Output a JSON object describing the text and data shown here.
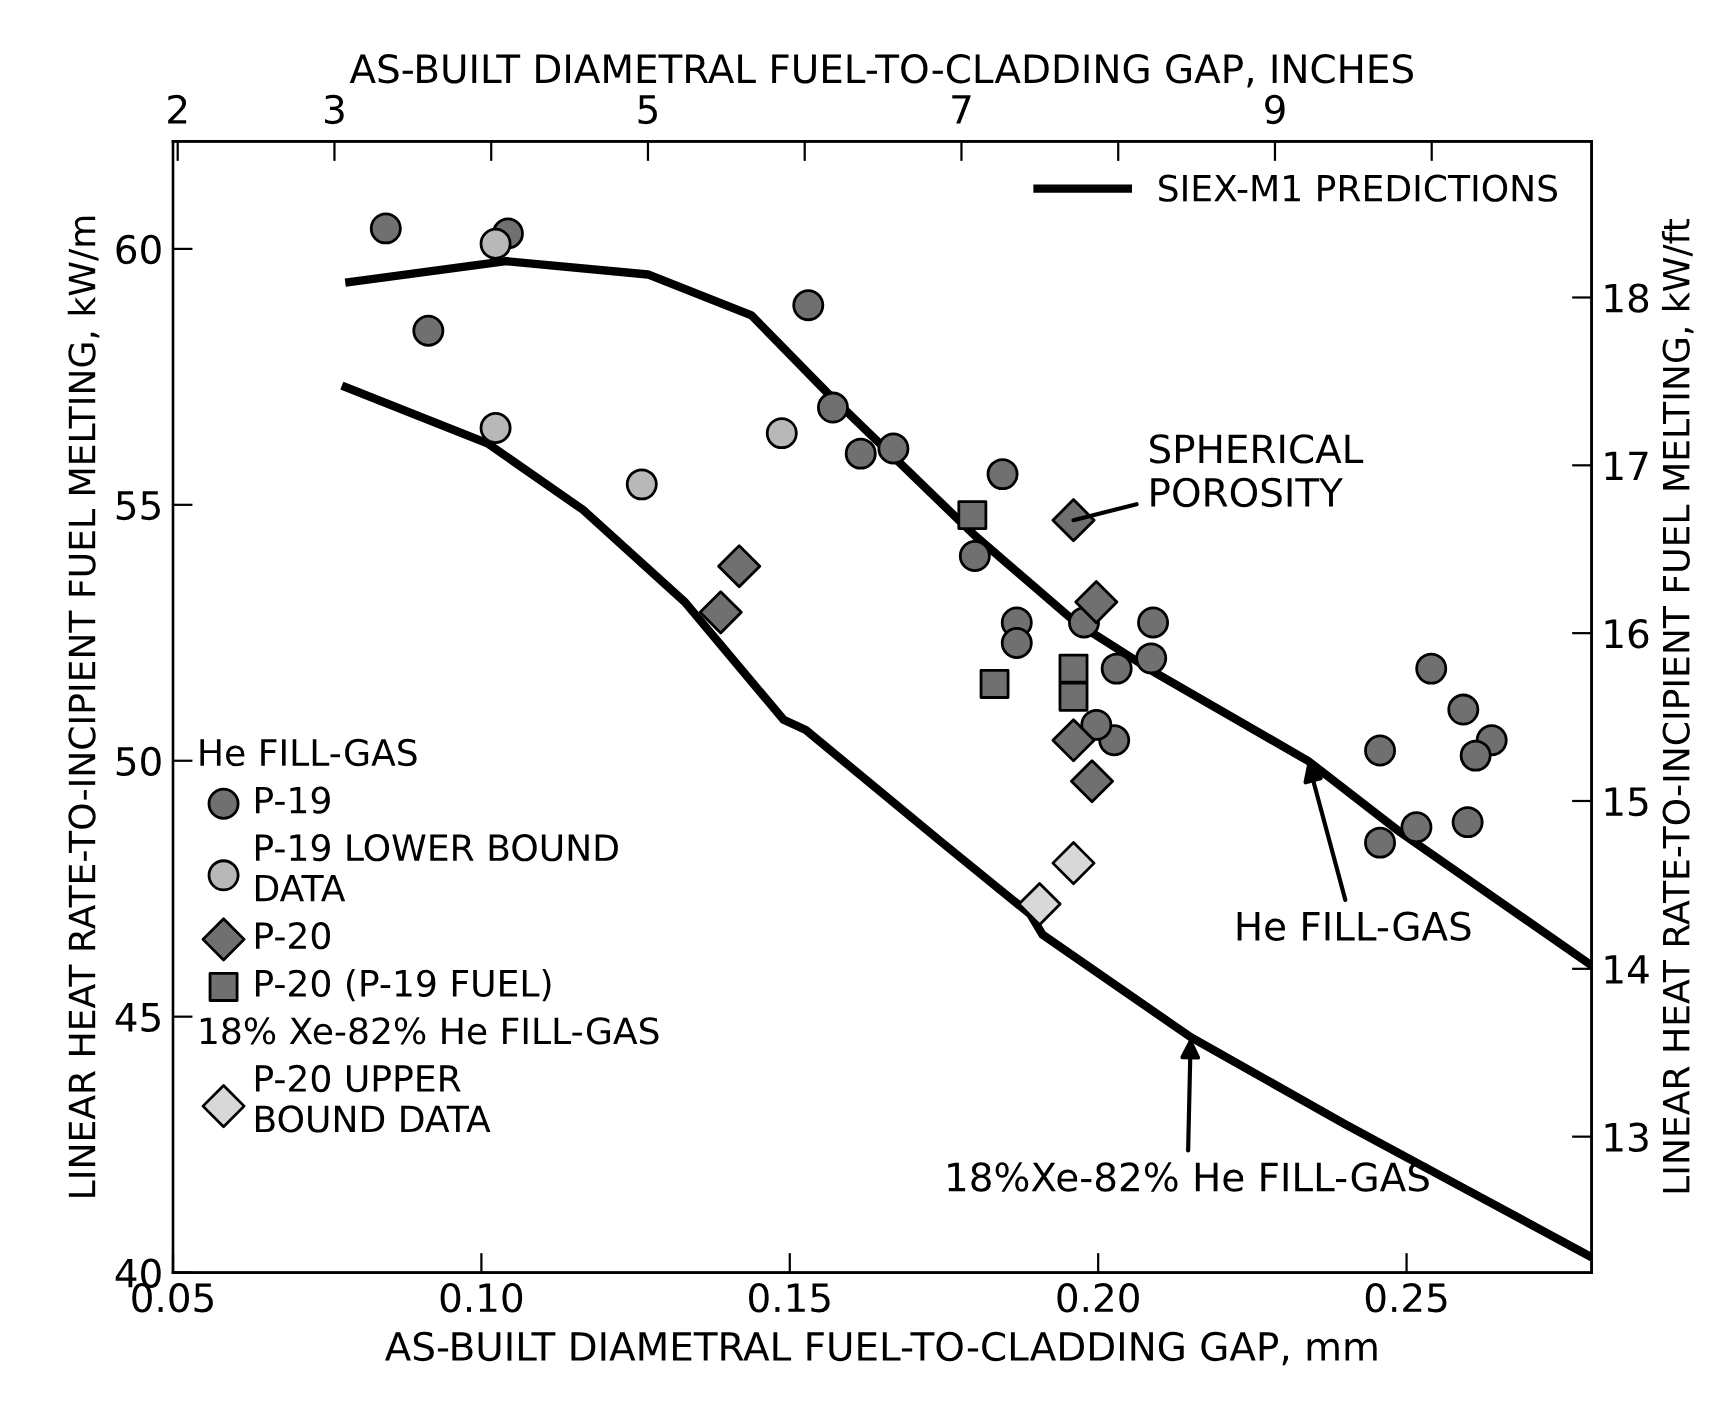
{
  "chart_data": {
    "type": "scatter",
    "xlabel": "AS-BUILT DIAMETRAL FUEL-TO-CLADDING GAP, mm",
    "x2label": "AS-BUILT DIAMETRAL FUEL-TO-CLADDING GAP, INCHES",
    "ylabel": "LINEAR HEAT RATE-TO-INCIPIENT FUEL MELTING, kW/m",
    "y2label": "LINEAR HEAT RATE-TO-INCIPIENT FUEL MELTING, kW/ft",
    "xlim": [
      0.05,
      0.28
    ],
    "xticks": [
      {
        "value": 0.05,
        "label": "0.05"
      },
      {
        "value": 0.1,
        "label": "0.10"
      },
      {
        "value": 0.15,
        "label": "0.15"
      },
      {
        "value": 0.2,
        "label": "0.20"
      },
      {
        "value": 0.25,
        "label": "0.25"
      }
    ],
    "x2lim": [
      1.97,
      11.02
    ],
    "x2ticks": [
      2,
      3,
      {
        "value": 4,
        "label": null
      },
      5,
      {
        "value": 6,
        "label": null
      },
      7,
      {
        "value": 8,
        "label": null
      },
      9,
      {
        "value": 10,
        "label": null
      }
    ],
    "ylim": [
      40,
      62.1
    ],
    "yticks": [
      40,
      45,
      50,
      55,
      60
    ],
    "y2lim": [
      12.19,
      18.93
    ],
    "y2ticks": [
      13,
      14,
      15,
      16,
      17,
      18
    ],
    "grid": false,
    "legend": "center left",
    "annotations": [
      "He FILL-GAS",
      "18% Xe-82% He FILL-GAS",
      {
        "text": "SPHERICAL\nPOROSITY",
        "x": 0.196,
        "y": 54.7
      },
      {
        "text": "He FILL-GAS",
        "x": 0.234,
        "y": 50.0
      },
      {
        "text": "18%Xe-82% He FILL-GAS",
        "x": 0.215,
        "y": 44.6
      }
    ],
    "series": [
      {
        "name": "P-19",
        "marker": "circle",
        "color": "#707070",
        "x": [
          0.0845,
          0.1043,
          0.0914,
          0.153,
          0.157,
          0.1615,
          0.1668,
          0.1845,
          0.18,
          0.1977,
          0.1868,
          0.1868,
          0.203,
          0.2086,
          0.2089,
          0.2026,
          0.1997,
          0.254,
          0.2592,
          0.2638,
          0.2612,
          0.2457,
          0.2599,
          0.2516,
          0.2457
        ],
        "values": [
          60.4,
          60.3,
          58.4,
          58.9,
          56.9,
          56.0,
          56.1,
          55.6,
          54.0,
          52.7,
          52.7,
          52.3,
          51.8,
          52.0,
          52.7,
          50.4,
          50.7,
          51.8,
          51.0,
          50.4,
          50.1,
          50.2,
          48.8,
          48.7,
          48.4
        ]
      },
      {
        "name": "P-19 LOWER BOUND\nDATA",
        "marker": "circle",
        "color": "#b8b8b8",
        "x": [
          0.1023,
          0.1023,
          0.126,
          0.1487
        ],
        "values": [
          60.1,
          56.5,
          55.4,
          56.4
        ]
      },
      {
        "name": "P-20",
        "marker": "diamond",
        "color": "#707070",
        "x": [
          0.1418,
          0.1388,
          0.196,
          0.1997,
          0.196,
          0.199
        ],
        "values": [
          53.8,
          52.9,
          54.7,
          53.1,
          50.4,
          49.6
        ]
      },
      {
        "name": "P-20 (P-19 FUEL)",
        "marker": "square",
        "color": "#707070",
        "x": [
          0.1796,
          0.1832,
          0.196,
          0.196
        ],
        "values": [
          54.8,
          51.5,
          51.8,
          51.25
        ]
      },
      {
        "name": "P-20 UPPER\nBOUND DATA",
        "marker": "diamond",
        "color": "#d8d8d8",
        "x": [
          0.196,
          0.1905
        ],
        "values": [
          48.0,
          47.2
        ]
      },
      {
        "name": "SIEX-M1 PREDICTIONS",
        "type": "line",
        "marker": "none",
        "color": "#000000",
        "x": [
          0.0786,
          0.104,
          0.127,
          0.1438,
          0.156,
          0.18,
          0.1964,
          0.2095,
          0.234,
          0.249,
          0.28
        ],
        "values": [
          59.35,
          59.76,
          59.5,
          58.7,
          57.2,
          54.4,
          52.7,
          51.7,
          50.0,
          48.6,
          46.0
        ]
      },
      {
        "type": "line",
        "marker": "none",
        "color": "#000000",
        "x": [
          0.078,
          0.101,
          0.1165,
          0.133,
          0.149,
          0.1526,
          0.1747,
          0.189,
          0.191,
          0.215,
          0.24,
          0.26,
          0.28
        ],
        "values": [
          57.3,
          56.2,
          54.9,
          53.1,
          50.8,
          50.6,
          48.4,
          47.0,
          46.6,
          44.6,
          42.9,
          41.6,
          40.3
        ]
      }
    ]
  }
}
